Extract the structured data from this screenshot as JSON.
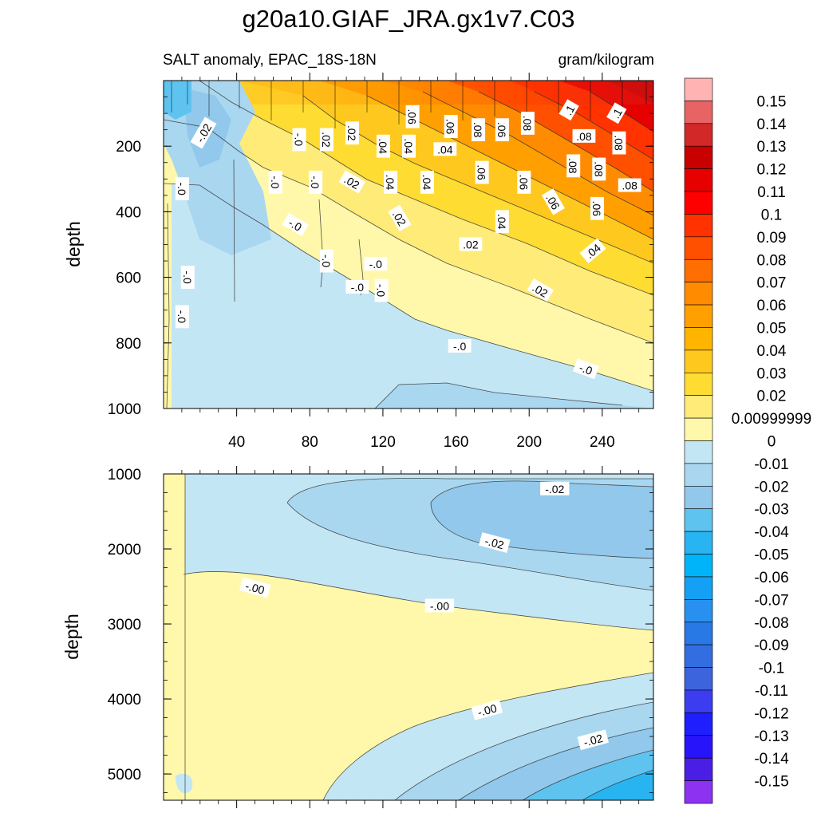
{
  "figure": {
    "title": "g20a10.GIAF_JRA.gx1v7.C03",
    "left_string": "SALT anomaly, EPAC_18S-18N",
    "right_string": "gram/kilogram"
  },
  "chart_data": [
    {
      "type": "contour",
      "panel": "upper",
      "title": "SALT anomaly, EPAC_18S-18N",
      "units": "gram/kilogram",
      "xlabel": "",
      "ylabel": "depth",
      "xlim": [
        0,
        268
      ],
      "ylim": [
        1000,
        0
      ],
      "xticks": [
        40,
        80,
        120,
        160,
        200,
        240
      ],
      "yticks": [
        200,
        400,
        600,
        800,
        1000
      ],
      "contour_labels": [
        {
          "text": "-.02",
          "x": 22,
          "depth": 160,
          "angle": -60
        },
        {
          "text": "-.0",
          "x": 74,
          "depth": 180,
          "angle": 90
        },
        {
          "text": ".02",
          "x": 89,
          "depth": 180,
          "angle": 90
        },
        {
          "text": ".02",
          "x": 103,
          "depth": 160,
          "angle": 90
        },
        {
          "text": ".04",
          "x": 120,
          "depth": 200,
          "angle": 90
        },
        {
          "text": ".04",
          "x": 134,
          "depth": 200,
          "angle": 90
        },
        {
          "text": ".06",
          "x": 136,
          "depth": 110,
          "angle": 90
        },
        {
          "text": ".04",
          "x": 154,
          "depth": 210,
          "angle": 0
        },
        {
          "text": ".06",
          "x": 157,
          "depth": 140,
          "angle": 90
        },
        {
          "text": ".08",
          "x": 172,
          "depth": 150,
          "angle": 90
        },
        {
          "text": ".06",
          "x": 185,
          "depth": 150,
          "angle": 90
        },
        {
          "text": ".08",
          "x": 199,
          "depth": 130,
          "angle": 90
        },
        {
          "text": ".1",
          "x": 222,
          "depth": 90,
          "angle": -60
        },
        {
          "text": ".08",
          "x": 230,
          "depth": 170,
          "angle": 0
        },
        {
          "text": ".1",
          "x": 248,
          "depth": 100,
          "angle": -60
        },
        {
          "text": ".08",
          "x": 249,
          "depth": 190,
          "angle": 90
        },
        {
          "text": ".08",
          "x": 224,
          "depth": 260,
          "angle": 90
        },
        {
          "text": ".08",
          "x": 238,
          "depth": 270,
          "angle": 90
        },
        {
          "text": ".08",
          "x": 255,
          "depth": 320,
          "angle": 0
        },
        {
          "text": ".06",
          "x": 174,
          "depth": 280,
          "angle": 90
        },
        {
          "text": ".06",
          "x": 197,
          "depth": 310,
          "angle": 90
        },
        {
          "text": ".06",
          "x": 213,
          "depth": 370,
          "angle": 60
        },
        {
          "text": ".06",
          "x": 237,
          "depth": 390,
          "angle": 90
        },
        {
          "text": ".04",
          "x": 124,
          "depth": 310,
          "angle": 90
        },
        {
          "text": ".04",
          "x": 144,
          "depth": 310,
          "angle": 90
        },
        {
          "text": ".04",
          "x": 185,
          "depth": 430,
          "angle": 90
        },
        {
          "text": ".04",
          "x": 235,
          "depth": 520,
          "angle": -40
        },
        {
          "text": ".02",
          "x": 103,
          "depth": 310,
          "angle": 30
        },
        {
          "text": ".02",
          "x": 129,
          "depth": 420,
          "angle": 60
        },
        {
          "text": ".02",
          "x": 168,
          "depth": 500,
          "angle": 0
        },
        {
          "text": ".02",
          "x": 206,
          "depth": 640,
          "angle": 30
        },
        {
          "text": "-.0",
          "x": 10,
          "depth": 330,
          "angle": 90
        },
        {
          "text": "-.0",
          "x": 61,
          "depth": 310,
          "angle": 90
        },
        {
          "text": "-.0",
          "x": 83,
          "depth": 310,
          "angle": 90
        },
        {
          "text": "-.0",
          "x": 72,
          "depth": 440,
          "angle": 30
        },
        {
          "text": "-.0",
          "x": 89,
          "depth": 550,
          "angle": 90
        },
        {
          "text": "-.0",
          "x": 116,
          "depth": 560,
          "angle": 0
        },
        {
          "text": "-.0",
          "x": 106,
          "depth": 630,
          "angle": 0
        },
        {
          "text": "-.0",
          "x": 119,
          "depth": 640,
          "angle": 90
        },
        {
          "text": "-.0",
          "x": 13,
          "depth": 600,
          "angle": 90
        },
        {
          "text": "-.0",
          "x": 10,
          "depth": 720,
          "angle": 90
        },
        {
          "text": "-.0",
          "x": 162,
          "depth": 810,
          "angle": 0
        },
        {
          "text": "-.0",
          "x": 231,
          "depth": 880,
          "angle": 20
        }
      ]
    },
    {
      "type": "contour",
      "panel": "lower",
      "xlabel": "",
      "ylabel": "depth",
      "xlim": [
        0,
        268
      ],
      "ylim": [
        5350,
        1000
      ],
      "yticks": [
        1000,
        2000,
        3000,
        4000,
        5000
      ],
      "contour_labels": [
        {
          "text": "-.02",
          "x": 214,
          "depth": 1200,
          "angle": 0
        },
        {
          "text": "-.02",
          "x": 181,
          "depth": 1920,
          "angle": 15
        },
        {
          "text": "-.00",
          "x": 50,
          "depth": 2520,
          "angle": 15
        },
        {
          "text": "-.00",
          "x": 151,
          "depth": 2760,
          "angle": 0
        },
        {
          "text": "-.00",
          "x": 177,
          "depth": 4150,
          "angle": -15
        },
        {
          "text": "-.02",
          "x": 235,
          "depth": 4550,
          "angle": -15
        }
      ]
    }
  ],
  "colorbar": {
    "labels": [
      "0.15",
      "0.14",
      "0.13",
      "0.12",
      "0.11",
      "0.1",
      "0.09",
      "0.08",
      "0.07",
      "0.06",
      "0.05",
      "0.04",
      "0.03",
      "0.02",
      "0.00999999",
      "0",
      "-0.01",
      "-0.02",
      "-0.03",
      "-0.04",
      "-0.05",
      "-0.06",
      "-0.07",
      "-0.08",
      "-0.09",
      "-0.1",
      "-0.11",
      "-0.12",
      "-0.13",
      "-0.14",
      "-0.15"
    ],
    "colors": [
      "#FFB3B3",
      "#E86464",
      "#D22828",
      "#C80000",
      "#E60000",
      "#FF0000",
      "#FF3200",
      "#FF5000",
      "#FF6E00",
      "#FF8C00",
      "#FFA000",
      "#FFB400",
      "#FFC81E",
      "#FFDC32",
      "#FFEB78",
      "#FFF8AA",
      "#C3E6F5",
      "#AAD7F0",
      "#91C8EB",
      "#5FC3F0",
      "#28B4F0",
      "#00B4FA",
      "#14A0F5",
      "#2891F0",
      "#2878E6",
      "#326EE1",
      "#3C64DC",
      "#3C3CF0",
      "#1E1EFF",
      "#2814FA",
      "#4B1EE6",
      "#8C32F0"
    ]
  }
}
